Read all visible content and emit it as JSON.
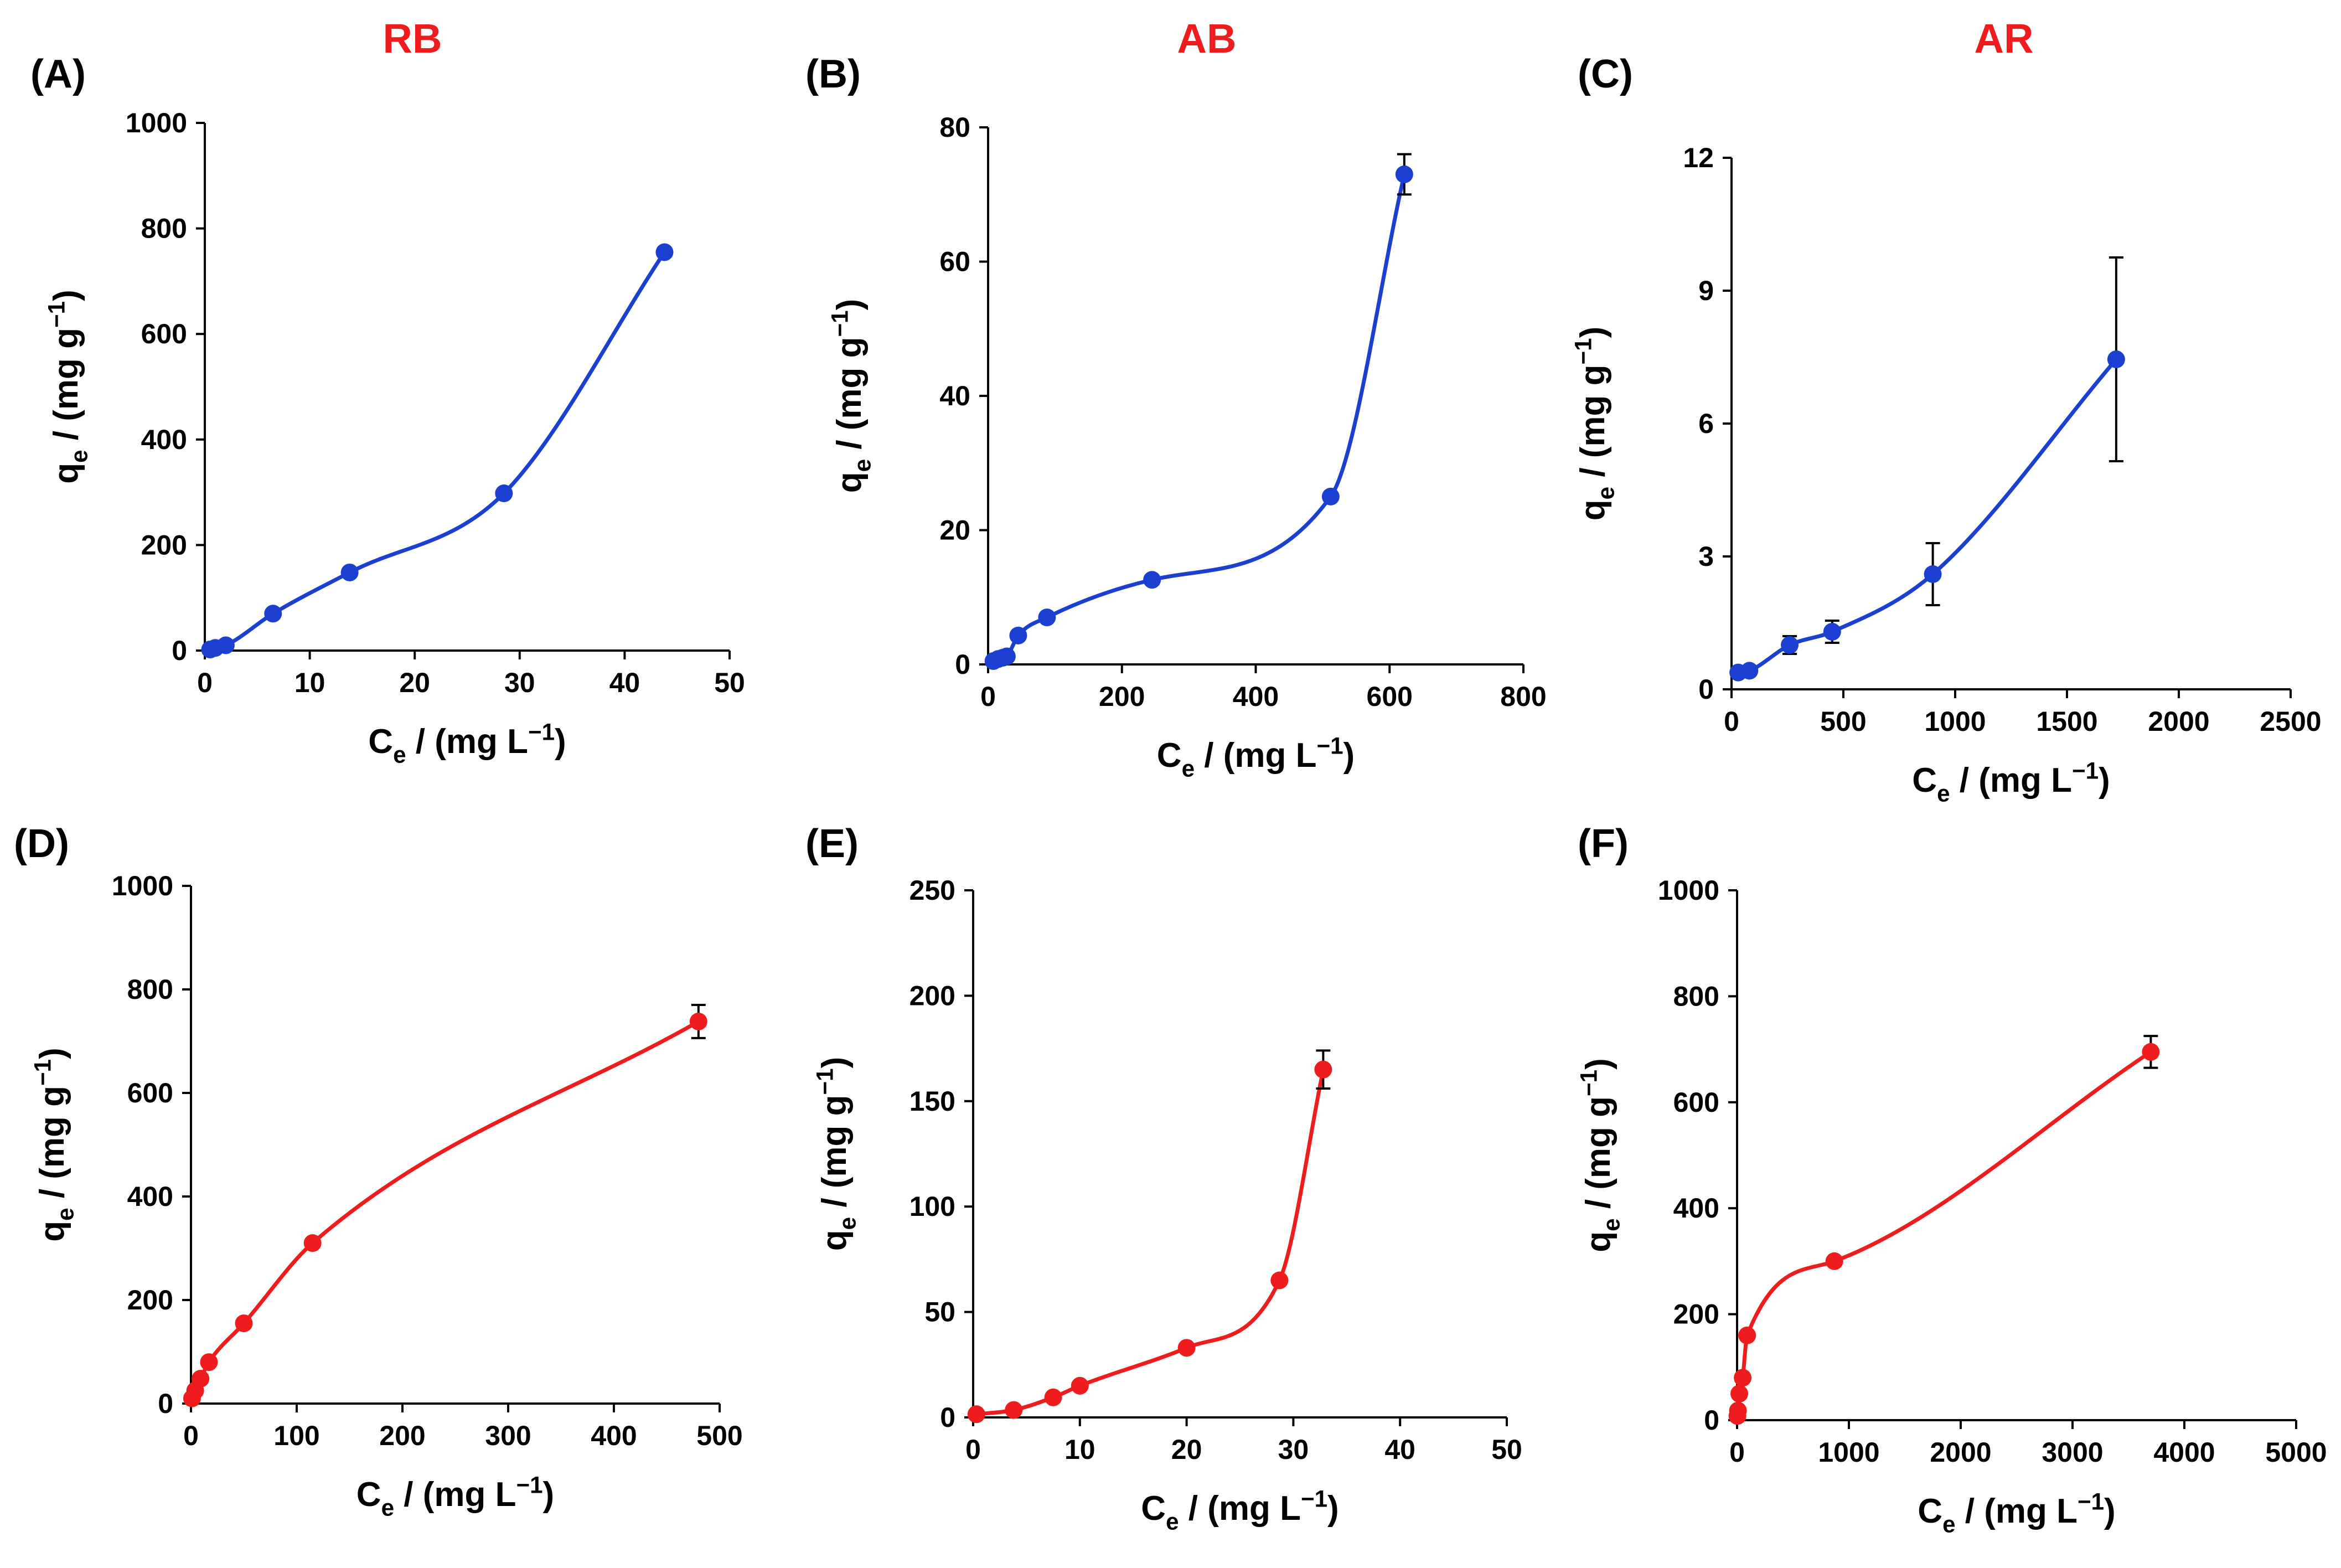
{
  "figure": {
    "panels": [
      "A",
      "B",
      "C",
      "D",
      "E",
      "F"
    ]
  },
  "chart_data": [
    {
      "panel_label": "(A)",
      "title": "RB",
      "type": "line",
      "series_color": "#1a3fd1",
      "title_color": "#ee1c1c",
      "xlabel": "C_e / (mg L−1)",
      "ylabel": "q_e / (mg g−1)",
      "xlim": [
        0,
        50
      ],
      "ylim": [
        0,
        1000
      ],
      "xticks": [
        0,
        10,
        20,
        30,
        40,
        50
      ],
      "yticks": [
        0,
        200,
        400,
        600,
        800,
        1000
      ],
      "points": [
        {
          "x": 0.5,
          "y": 2
        },
        {
          "x": 1.0,
          "y": 5
        },
        {
          "x": 2.0,
          "y": 10
        },
        {
          "x": 6.5,
          "y": 70
        },
        {
          "x": 13.8,
          "y": 148
        },
        {
          "x": 28.5,
          "y": 298
        },
        {
          "x": 43.8,
          "y": 755
        }
      ]
    },
    {
      "panel_label": "(B)",
      "title": "AB",
      "type": "line",
      "series_color": "#1a3fd1",
      "title_color": "#ee1c1c",
      "xlabel": "C_e / (mg L−1)",
      "ylabel": "q_e / (mg g−1)",
      "xlim": [
        0,
        800
      ],
      "ylim": [
        0,
        80
      ],
      "xticks": [
        0,
        200,
        400,
        600,
        800
      ],
      "yticks": [
        0,
        20,
        40,
        60,
        80
      ],
      "points": [
        {
          "x": 8,
          "y": 0.5
        },
        {
          "x": 15,
          "y": 0.8
        },
        {
          "x": 22,
          "y": 1.0
        },
        {
          "x": 28,
          "y": 1.2
        },
        {
          "x": 45,
          "y": 4.3
        },
        {
          "x": 88,
          "y": 7.0
        },
        {
          "x": 245,
          "y": 12.6
        },
        {
          "x": 512,
          "y": 25.0
        },
        {
          "x": 622,
          "y": 73.0,
          "err": 3
        }
      ]
    },
    {
      "panel_label": "(C)",
      "title": "AR",
      "type": "line",
      "series_color": "#1a3fd1",
      "title_color": "#ee1c1c",
      "xlabel": "C_e / (mg L−1)",
      "ylabel": "q_e / (mg g−1)",
      "xlim": [
        0,
        2500
      ],
      "ylim": [
        0,
        12
      ],
      "xticks": [
        0,
        500,
        1000,
        1500,
        2000,
        2500
      ],
      "yticks": [
        0,
        3,
        6,
        9,
        12
      ],
      "points": [
        {
          "x": 30,
          "y": 0.38
        },
        {
          "x": 80,
          "y": 0.42
        },
        {
          "x": 260,
          "y": 1.0,
          "err": 0.2
        },
        {
          "x": 450,
          "y": 1.3,
          "err": 0.25
        },
        {
          "x": 900,
          "y": 2.6,
          "err": 0.7
        },
        {
          "x": 1720,
          "y": 7.45,
          "err": 2.3
        }
      ]
    },
    {
      "panel_label": "(D)",
      "title": "",
      "type": "line",
      "series_color": "#ee1c1c",
      "xlabel": "C_e / (mg L−1)",
      "ylabel": "q_e / (mg g−1)",
      "xlim": [
        0,
        500
      ],
      "ylim": [
        0,
        1000
      ],
      "xticks": [
        0,
        100,
        200,
        300,
        400,
        500
      ],
      "yticks": [
        0,
        200,
        400,
        600,
        800,
        1000
      ],
      "points": [
        {
          "x": 1,
          "y": 10
        },
        {
          "x": 4,
          "y": 25
        },
        {
          "x": 9,
          "y": 48
        },
        {
          "x": 17,
          "y": 80
        },
        {
          "x": 50,
          "y": 155
        },
        {
          "x": 115,
          "y": 310
        },
        {
          "x": 480,
          "y": 738,
          "err": 32
        }
      ]
    },
    {
      "panel_label": "(E)",
      "title": "",
      "type": "line",
      "series_color": "#ee1c1c",
      "xlabel": "C_e / (mg L−1)",
      "ylabel": "q_e / (mg g−1)",
      "xlim": [
        0,
        50
      ],
      "ylim": [
        0,
        250
      ],
      "xticks": [
        0,
        10,
        20,
        30,
        40,
        50
      ],
      "yticks": [
        0,
        50,
        100,
        150,
        200,
        250
      ],
      "points": [
        {
          "x": 0.3,
          "y": 1.5
        },
        {
          "x": 3.8,
          "y": 3.5
        },
        {
          "x": 7.5,
          "y": 9.5
        },
        {
          "x": 10.0,
          "y": 15.0
        },
        {
          "x": 20.0,
          "y": 33.0
        },
        {
          "x": 28.7,
          "y": 65.0
        },
        {
          "x": 32.8,
          "y": 165.0,
          "err": 9
        }
      ]
    },
    {
      "panel_label": "(F)",
      "title": "",
      "type": "line",
      "series_color": "#ee1c1c",
      "xlabel": "C_e / (mg L−1)",
      "ylabel": "q_e / (mg g−1)",
      "xlim": [
        0,
        5000
      ],
      "ylim": [
        0,
        1000
      ],
      "xticks": [
        0,
        1000,
        2000,
        3000,
        4000,
        5000
      ],
      "yticks": [
        0,
        200,
        400,
        600,
        800,
        1000
      ],
      "points": [
        {
          "x": 3,
          "y": 8
        },
        {
          "x": 8,
          "y": 18
        },
        {
          "x": 20,
          "y": 50
        },
        {
          "x": 50,
          "y": 80
        },
        {
          "x": 90,
          "y": 160
        },
        {
          "x": 870,
          "y": 300
        },
        {
          "x": 3700,
          "y": 695,
          "err": 30
        }
      ]
    }
  ]
}
